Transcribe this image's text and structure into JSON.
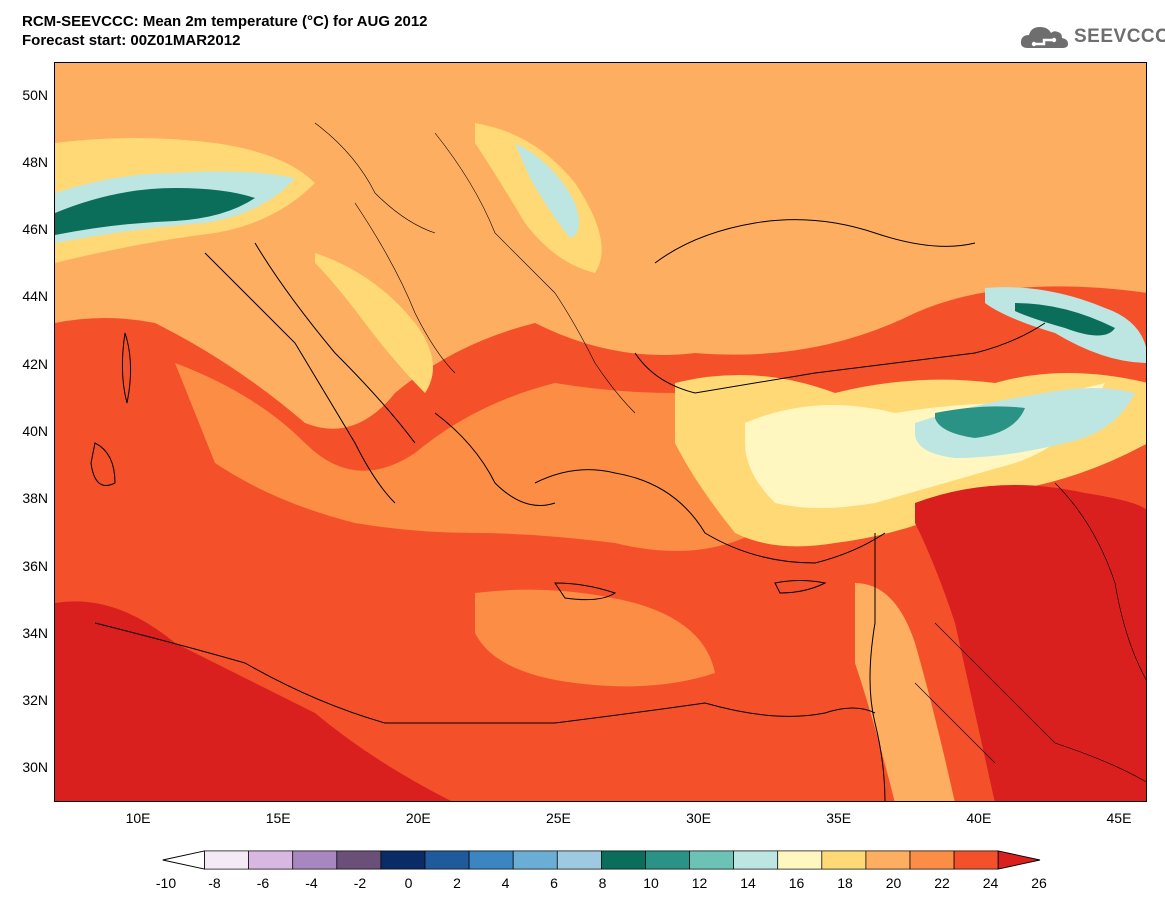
{
  "header": {
    "title_line1": "RCM-SEEVCCC: Mean 2m temperature (°C) for AUG 2012",
    "title_line2": "Forecast start: 00Z01MAR2012"
  },
  "logo": {
    "text": "SEEVCCC",
    "icon": "cloud-icon"
  },
  "map": {
    "lon_range": [
      7,
      46
    ],
    "lat_range": [
      29,
      51
    ],
    "lat_labels": [
      "50N",
      "48N",
      "46N",
      "44N",
      "42N",
      "40N",
      "38N",
      "36N",
      "34N",
      "32N",
      "30N"
    ],
    "lon_labels": [
      "10E",
      "15E",
      "20E",
      "25E",
      "30E",
      "35E",
      "40E",
      "45E"
    ]
  },
  "colorbar": {
    "labels": [
      "-10",
      "-8",
      "-6",
      "-4",
      "-2",
      "0",
      "2",
      "4",
      "6",
      "8",
      "10",
      "12",
      "14",
      "16",
      "18",
      "20",
      "22",
      "24",
      "26"
    ],
    "colors": [
      "#f3eaf5",
      "#d9b7e3",
      "#a886c0",
      "#6a4f78",
      "#0b2b66",
      "#1e5a9c",
      "#3a85c2",
      "#6aaed6",
      "#9ecae1",
      "#0a6e5a",
      "#2a9385",
      "#6cc3b5",
      "#bde5e1",
      "#fff7bf",
      "#fed976",
      "#fdae61",
      "#fc8d44",
      "#f4512b"
    ],
    "under_color": "#ffffff",
    "over_color": "#d9201f"
  }
}
